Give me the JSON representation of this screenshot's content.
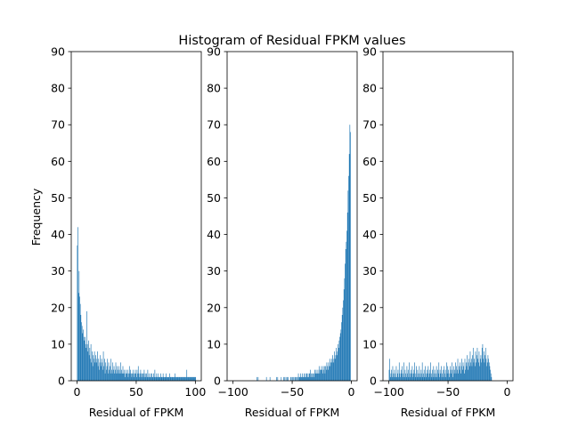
{
  "chart_data": {
    "type": "histogram",
    "title": "Histogram of Residual FPKM values",
    "ylabel": "Frequency",
    "color": "#1f77b4",
    "ylim": [
      0,
      90
    ],
    "yticks": [
      0,
      10,
      20,
      30,
      40,
      50,
      60,
      70,
      80,
      90
    ],
    "panels": [
      {
        "xlabel": "Residual of FPKM",
        "xlim": [
          -4.9,
          105
        ],
        "xticks": [
          0,
          50,
          100
        ],
        "bin_width": 0.5,
        "bin_start": 0,
        "counts": [
          37,
          42,
          24,
          30,
          23,
          21,
          18,
          16,
          15,
          13,
          14,
          12,
          11,
          12,
          10,
          9,
          19,
          10,
          8,
          11,
          7,
          9,
          6,
          10,
          5,
          8,
          4,
          7,
          6,
          8,
          5,
          7,
          6,
          5,
          8,
          4,
          6,
          3,
          5,
          7,
          4,
          6,
          5,
          3,
          8,
          4,
          6,
          2,
          5,
          3,
          4,
          6,
          2,
          5,
          3,
          4,
          2,
          6,
          3,
          2,
          5,
          3,
          4,
          2,
          3,
          5,
          2,
          4,
          3,
          2,
          4,
          3,
          2,
          5,
          2,
          3,
          2,
          4,
          2,
          3,
          2,
          1,
          3,
          2,
          2,
          3,
          1,
          2,
          4,
          2,
          3,
          2,
          1,
          2,
          3,
          2,
          1,
          2,
          3,
          2,
          1,
          3,
          2,
          4,
          2,
          1,
          2,
          3,
          1,
          2,
          2,
          1,
          2,
          3,
          1,
          2,
          1,
          2,
          1,
          3,
          1,
          2,
          1,
          1,
          2,
          1,
          2,
          1,
          1,
          2,
          1,
          3,
          1,
          1,
          2,
          1,
          1,
          2,
          1,
          1,
          1,
          2,
          1,
          1,
          1,
          2,
          1,
          1,
          1,
          1,
          2,
          1,
          1,
          1,
          1,
          1,
          2,
          1,
          1,
          1,
          1,
          1,
          1,
          1,
          1,
          2,
          1,
          1,
          1,
          1,
          1,
          1,
          1,
          1,
          1,
          1,
          1,
          1,
          1,
          1,
          1,
          1,
          1,
          1,
          1,
          3,
          1,
          1,
          1,
          1,
          1,
          1,
          1,
          1,
          1,
          1,
          1,
          1,
          1,
          1,
          1
        ]
      },
      {
        "xlabel": "Residual of FPKM",
        "xlim": [
          -105,
          4.9
        ],
        "xticks": [
          -100,
          -50,
          0
        ],
        "bin_width": 0.5,
        "bin_start": -85,
        "counts": [
          0,
          0,
          0,
          0,
          0,
          0,
          0,
          0,
          0,
          0,
          1,
          0,
          1,
          0,
          0,
          0,
          0,
          0,
          0,
          0,
          0,
          0,
          0,
          0,
          0,
          0,
          1,
          0,
          0,
          0,
          0,
          0,
          1,
          0,
          0,
          0,
          0,
          0,
          0,
          0,
          0,
          0,
          0,
          1,
          0,
          1,
          0,
          0,
          0,
          0,
          0,
          1,
          0,
          0,
          0,
          1,
          0,
          1,
          0,
          1,
          0,
          1,
          0,
          1,
          0,
          0,
          0,
          1,
          1,
          0,
          1,
          0,
          1,
          0,
          1,
          1,
          0,
          1,
          1,
          0,
          2,
          1,
          1,
          1,
          2,
          1,
          1,
          2,
          1,
          1,
          2,
          1,
          2,
          1,
          2,
          2,
          1,
          1,
          2,
          2,
          3,
          1,
          2,
          1,
          2,
          2,
          1,
          2,
          3,
          2,
          3,
          2,
          2,
          3,
          2,
          4,
          2,
          3,
          3,
          4,
          3,
          2,
          4,
          3,
          4,
          2,
          4,
          3,
          5,
          4,
          3,
          5,
          4,
          6,
          4,
          5,
          6,
          5,
          7,
          5,
          6,
          8,
          6,
          7,
          9,
          7,
          8,
          10,
          9,
          11,
          12,
          13,
          14,
          16,
          18,
          20,
          22,
          25,
          28,
          32,
          36,
          38,
          41,
          46,
          52,
          56,
          62,
          70,
          68
        ]
      },
      {
        "xlabel": "Residual of FPKM",
        "xlim": [
          -105,
          4.9
        ],
        "xticks": [
          -100,
          -50,
          0
        ],
        "bin_width": 0.5,
        "bin_start": -100,
        "counts": [
          3,
          6,
          1,
          2,
          3,
          1,
          4,
          2,
          1,
          3,
          2,
          1,
          4,
          1,
          2,
          3,
          1,
          5,
          2,
          1,
          3,
          2,
          4,
          1,
          2,
          5,
          1,
          3,
          2,
          1,
          4,
          2,
          3,
          1,
          5,
          2,
          1,
          3,
          2,
          4,
          1,
          2,
          3,
          5,
          1,
          2,
          4,
          1,
          3,
          2,
          1,
          4,
          2,
          1,
          3,
          2,
          5,
          1,
          2,
          3,
          1,
          4,
          2,
          1,
          3,
          2,
          4,
          1,
          3,
          2,
          5,
          1,
          2,
          3,
          1,
          4,
          2,
          3,
          1,
          2,
          4,
          1,
          3,
          2,
          5,
          1,
          3,
          2,
          4,
          1,
          2,
          3,
          1,
          4,
          2,
          3,
          1,
          5,
          2,
          4,
          3,
          2,
          1,
          4,
          3,
          2,
          5,
          3,
          1,
          4,
          2,
          3,
          5,
          2,
          4,
          3,
          6,
          2,
          4,
          3,
          5,
          2,
          4,
          6,
          3,
          5,
          4,
          2,
          6,
          3,
          5,
          4,
          7,
          3,
          5,
          6,
          4,
          8,
          5,
          6,
          4,
          7,
          9,
          5,
          6,
          4,
          8,
          5,
          7,
          9,
          6,
          5,
          8,
          4,
          6,
          7,
          5,
          9,
          10,
          6,
          8,
          5,
          7,
          9,
          6,
          4,
          5,
          7,
          6,
          5,
          4,
          3,
          2,
          1
        ]
      }
    ]
  }
}
